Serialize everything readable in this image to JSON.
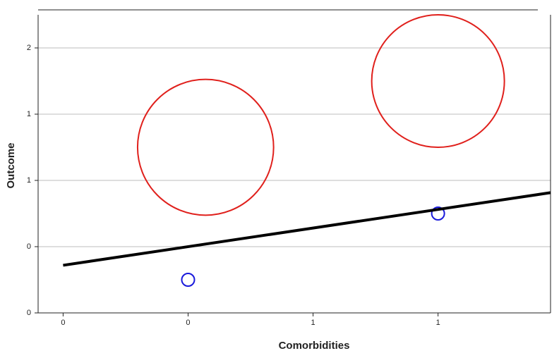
{
  "chart_data": {
    "type": "scatter",
    "x_label": "Comorbidities",
    "y_label": "Outcome",
    "xlim": [
      -0.6,
      1.45
    ],
    "ylim": [
      0,
      1.8
    ],
    "xticks": [
      {
        "value": -0.5,
        "label": "0"
      },
      0,
      {
        "value": 0.5,
        "label": "1"
      },
      1
    ],
    "yticks": [
      0,
      {
        "value": 0.4,
        "label": "0"
      },
      {
        "value": 0.8,
        "label": "1"
      },
      {
        "value": 1.2,
        "label": "1"
      },
      {
        "value": 1.6,
        "label": "2"
      }
    ],
    "grid": true,
    "series": [
      {
        "kind": "points",
        "color": "#1a1adb",
        "x": [
          0,
          1
        ],
        "values": [
          0.2,
          0.6
        ]
      },
      {
        "kind": "bubbles",
        "color": "#e0201c",
        "x": [
          0.07,
          1.0
        ],
        "values": [
          1.0,
          1.4
        ],
        "sizes": [
          0.41,
          0.4
        ]
      },
      {
        "kind": "line",
        "color": "#000000",
        "x": [
          -0.5,
          1.45
        ],
        "values": [
          0.2875,
          0.726
        ]
      }
    ]
  }
}
